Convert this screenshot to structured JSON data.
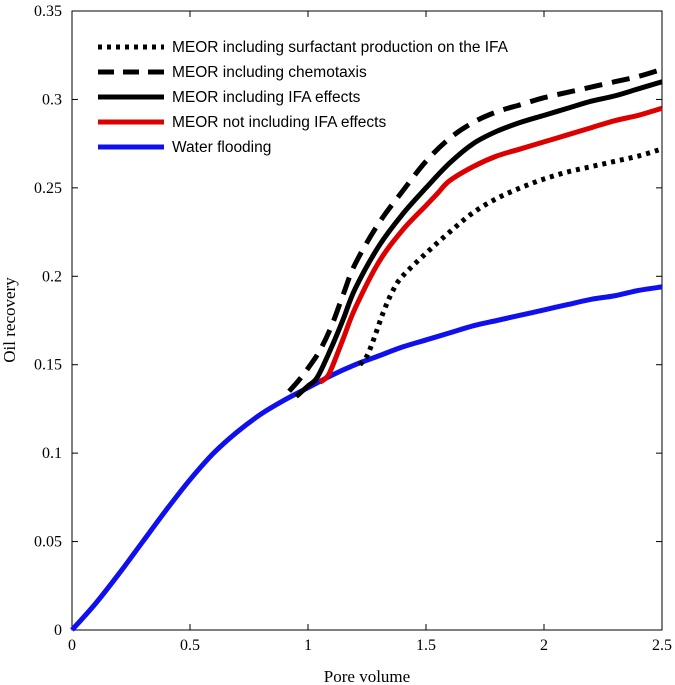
{
  "chart_data": {
    "type": "line",
    "title": "",
    "xlabel": "Pore volume",
    "ylabel": "Oil recovery",
    "xlim": [
      0,
      2.5
    ],
    "ylim": [
      0,
      0.35
    ],
    "xticks": [
      0,
      0.5,
      1,
      1.5,
      2,
      2.5
    ],
    "xtick_labels": [
      "0",
      "0.5",
      "1",
      "1.5",
      "2",
      "2.5"
    ],
    "yticks": [
      0,
      0.05,
      0.1,
      0.15,
      0.2,
      0.25,
      0.3,
      0.35
    ],
    "ytick_labels": [
      "0",
      "0.05",
      "0.1",
      "0.15",
      "0.2",
      "0.25",
      "0.3",
      "0.35"
    ],
    "grid": false,
    "legend_position": "top-left",
    "series": [
      {
        "name": "MEOR including surfactant production on the IFA",
        "color": "#000000",
        "style": "dotted",
        "x": [
          1.22,
          1.25,
          1.28,
          1.32,
          1.36,
          1.4,
          1.5,
          1.6,
          1.7,
          1.8,
          1.9,
          2.0,
          2.1,
          2.2,
          2.3,
          2.4,
          2.5
        ],
        "y": [
          0.15,
          0.155,
          0.165,
          0.18,
          0.192,
          0.2,
          0.213,
          0.225,
          0.236,
          0.244,
          0.25,
          0.255,
          0.259,
          0.262,
          0.265,
          0.268,
          0.272
        ]
      },
      {
        "name": "MEOR including chemotaxis",
        "color": "#000000",
        "style": "dashed",
        "x": [
          0.92,
          0.96,
          1.0,
          1.05,
          1.1,
          1.15,
          1.2,
          1.3,
          1.4,
          1.5,
          1.6,
          1.7,
          1.8,
          1.9,
          2.0,
          2.1,
          2.2,
          2.3,
          2.4,
          2.5
        ],
        "y": [
          0.135,
          0.141,
          0.148,
          0.158,
          0.172,
          0.19,
          0.207,
          0.23,
          0.248,
          0.265,
          0.278,
          0.287,
          0.293,
          0.297,
          0.301,
          0.304,
          0.307,
          0.31,
          0.313,
          0.317
        ]
      },
      {
        "name": "MEOR including IFA effects",
        "color": "#000000",
        "style": "solid",
        "x": [
          0.95,
          1.0,
          1.04,
          1.1,
          1.15,
          1.2,
          1.3,
          1.4,
          1.5,
          1.6,
          1.7,
          1.8,
          1.9,
          2.0,
          2.1,
          2.2,
          2.3,
          2.4,
          2.5
        ],
        "y": [
          0.132,
          0.138,
          0.143,
          0.16,
          0.176,
          0.193,
          0.217,
          0.235,
          0.25,
          0.264,
          0.275,
          0.282,
          0.287,
          0.291,
          0.295,
          0.299,
          0.302,
          0.306,
          0.31
        ]
      },
      {
        "name": "MEOR not including IFA effects",
        "color": "#dd0000",
        "style": "solid",
        "x": [
          1.05,
          1.08,
          1.1,
          1.15,
          1.2,
          1.3,
          1.4,
          1.5,
          1.55,
          1.6,
          1.7,
          1.8,
          1.9,
          2.0,
          2.1,
          2.2,
          2.3,
          2.4,
          2.5
        ],
        "y": [
          0.14,
          0.143,
          0.148,
          0.165,
          0.182,
          0.208,
          0.226,
          0.24,
          0.247,
          0.254,
          0.262,
          0.268,
          0.272,
          0.276,
          0.28,
          0.284,
          0.288,
          0.291,
          0.295
        ]
      },
      {
        "name": "Water flooding",
        "color": "#1010ee",
        "style": "solid",
        "x": [
          0,
          0.1,
          0.2,
          0.3,
          0.4,
          0.5,
          0.6,
          0.7,
          0.8,
          0.9,
          1.0,
          1.1,
          1.2,
          1.3,
          1.4,
          1.5,
          1.6,
          1.7,
          1.8,
          1.9,
          2.0,
          2.1,
          2.2,
          2.3,
          2.4,
          2.5
        ],
        "y": [
          0,
          0.015,
          0.032,
          0.05,
          0.068,
          0.085,
          0.1,
          0.112,
          0.122,
          0.13,
          0.137,
          0.144,
          0.15,
          0.155,
          0.16,
          0.164,
          0.168,
          0.172,
          0.175,
          0.178,
          0.181,
          0.184,
          0.187,
          0.189,
          0.192,
          0.194
        ]
      }
    ]
  }
}
